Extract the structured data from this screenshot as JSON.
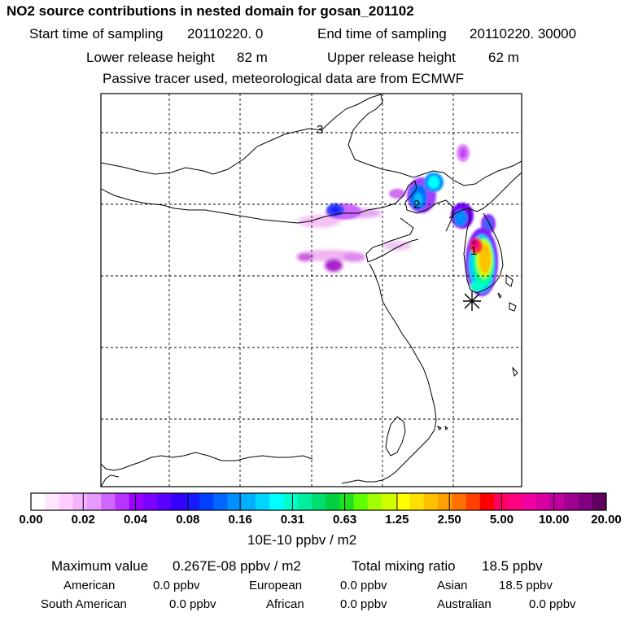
{
  "title": "NO2 source contributions in nested domain for gosan_201102",
  "sampling": {
    "start_label": "Start time of sampling",
    "start_value": "20110220.    0",
    "end_label": "End time of sampling",
    "end_value": "20110220. 30000"
  },
  "release": {
    "lower_label": "Lower release height",
    "lower_value": "82 m",
    "upper_label": "Upper release height",
    "upper_value": "62 m"
  },
  "note": "Passive tracer used, meteorological data are from ECMWF",
  "map": {
    "contour_labels": [
      "3",
      "2",
      "1"
    ]
  },
  "colorbar": {
    "tick_labels": [
      "0.00",
      "0.02",
      "0.04",
      "0.08",
      "0.16",
      "0.31",
      "0.63",
      "1.25",
      "2.50",
      "5.00",
      "10.00",
      "20.00"
    ],
    "unit": "10E-10 ppbv / m2",
    "colors": [
      "#ffffff",
      "#ffe6ff",
      "#ffccff",
      "#f5b3ff",
      "#e699ff",
      "#cc66ff",
      "#b833ff",
      "#9900ff",
      "#7a00ff",
      "#5a00ff",
      "#3300ff",
      "#1a1aff",
      "#0040ff",
      "#0066ff",
      "#0090ff",
      "#00b0ff",
      "#00d5ff",
      "#00ffff",
      "#00ffcc",
      "#00f0a0",
      "#00e070",
      "#00d040",
      "#20e020",
      "#60ff00",
      "#a0ff00",
      "#d0ff00",
      "#ffff00",
      "#ffe000",
      "#ffc000",
      "#ffa000",
      "#ff7000",
      "#ff4000",
      "#ff0000",
      "#ff0060",
      "#ff0080",
      "#f000a0",
      "#d800a0",
      "#c000a0",
      "#a00090",
      "#800080",
      "#600060"
    ]
  },
  "stats": {
    "max_label": "Maximum value",
    "max_value": "0.267E-08 ppbv / m2",
    "total_label": "Total mixing ratio",
    "total_value": "18.5 ppbv",
    "regions": [
      {
        "name": "American",
        "value": "0.0 ppbv"
      },
      {
        "name": "European",
        "value": "0.0 ppbv"
      },
      {
        "name": "Asian",
        "value": "18.5 ppbv"
      },
      {
        "name": "South American",
        "value": "0.0 ppbv"
      },
      {
        "name": "African",
        "value": "0.0 ppbv"
      },
      {
        "name": "Australian",
        "value": "0.0 ppbv"
      }
    ]
  }
}
